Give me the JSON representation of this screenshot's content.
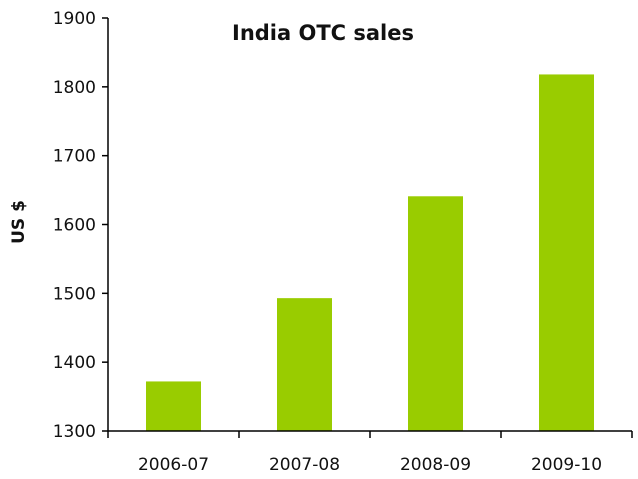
{
  "chart_data": {
    "type": "bar",
    "title": "India OTC sales",
    "xlabel": "",
    "ylabel": "US $",
    "categories": [
      "2006-07",
      "2007-08",
      "2008-09",
      "2009-10"
    ],
    "values": [
      1372,
      1493,
      1641,
      1818
    ],
    "ylim": [
      1300,
      1900
    ],
    "yticks": [
      1300,
      1400,
      1500,
      1600,
      1700,
      1800,
      1900
    ],
    "grid": false,
    "legend": "none",
    "bar_color": "#99cc00",
    "axis_color": "#000000"
  }
}
